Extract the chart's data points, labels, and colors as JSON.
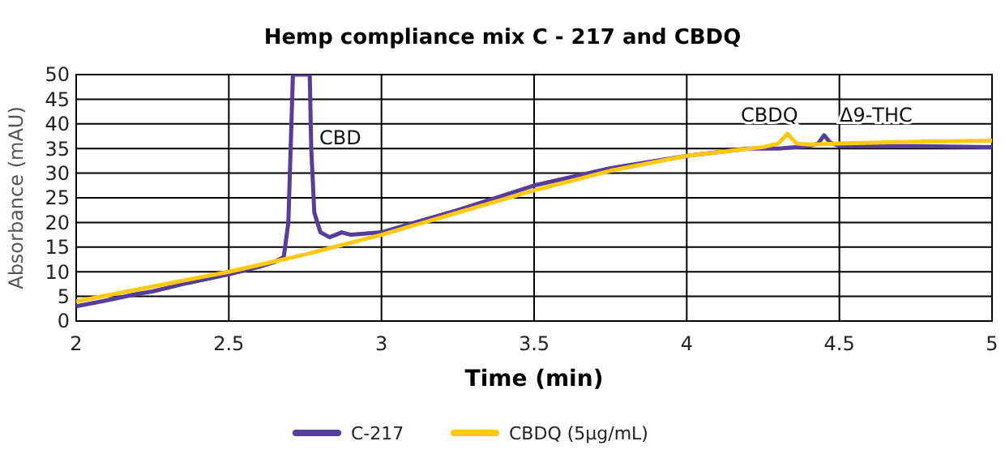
{
  "chart_data": {
    "type": "line",
    "title": "Hemp compliance mix C - 217 and CBDQ",
    "xlabel": "Time (min)",
    "ylabel": "Absorbance (mAU)",
    "xlim": [
      2,
      5
    ],
    "xticks": [
      2,
      2.5,
      3,
      3.5,
      4,
      4.5,
      5
    ],
    "ylim": [
      0,
      50
    ],
    "yticks": [
      0,
      5,
      10,
      15,
      20,
      25,
      30,
      35,
      40,
      45,
      50
    ],
    "grid": true,
    "legend": "bottom",
    "marker": "none",
    "line_style": "solid",
    "annotations": [
      "CBD",
      "CBDQ",
      "Δ9-THC"
    ],
    "series": [
      {
        "name": "C-217",
        "color": "#553d99",
        "x": [
          2,
          2.1,
          2.2,
          2.25,
          2.35,
          2.5,
          2.6,
          2.65,
          2.68,
          2.695,
          2.705,
          2.71,
          2.765,
          2.77,
          2.78,
          2.8,
          2.83,
          2.87,
          2.9,
          3,
          3.25,
          3.5,
          3.75,
          4,
          4.2,
          4.3,
          4.4,
          4.43,
          4.45,
          4.47,
          4.5,
          4.75,
          5
        ],
        "values": [
          3,
          4.2,
          5.5,
          6,
          7.5,
          9.5,
          11,
          12,
          13,
          20,
          40,
          50,
          50,
          35,
          22,
          18,
          17,
          18,
          17.5,
          18,
          22.5,
          27.5,
          31,
          33.5,
          35,
          35,
          35.5,
          36,
          37.7,
          36.2,
          35.5,
          35.5,
          35.3
        ]
      },
      {
        "name": "CBDQ (5µg/mL)",
        "color": "#ffc90e",
        "x": [
          2,
          2.25,
          2.5,
          2.75,
          3,
          3.25,
          3.5,
          3.75,
          4,
          4.25,
          4.3,
          4.33,
          4.36,
          4.4,
          4.5,
          4.75,
          5
        ],
        "values": [
          4,
          7,
          10,
          13.5,
          17.5,
          22,
          26.5,
          30.5,
          33.5,
          35.3,
          36,
          38,
          36,
          35.8,
          36,
          36.4,
          36.6
        ]
      }
    ]
  }
}
